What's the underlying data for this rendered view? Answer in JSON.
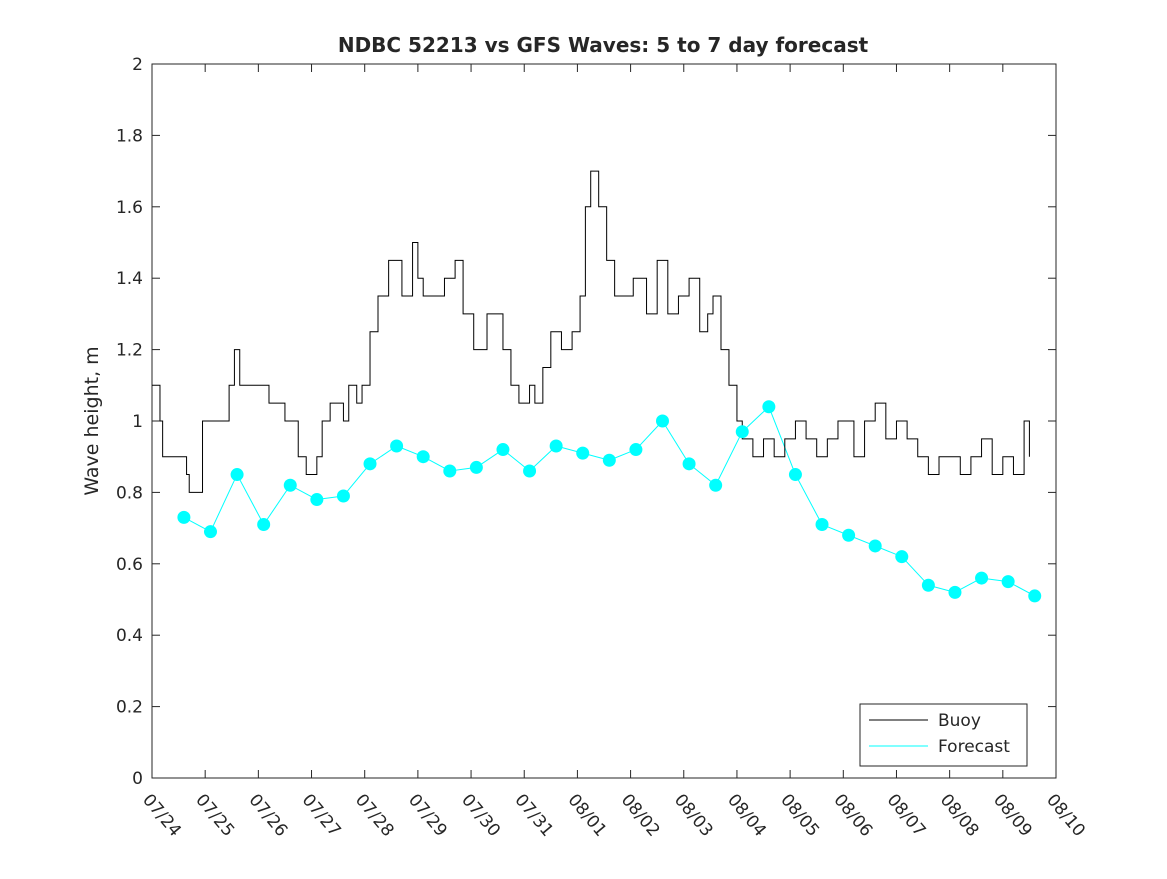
{
  "chart_data": {
    "type": "line",
    "title": "NDBC 52213 vs GFS Waves: 5 to 7 day forecast",
    "xlabel": "",
    "ylabel": "Wave height, m",
    "xlim": [
      0,
      17
    ],
    "ylim": [
      0,
      2
    ],
    "x_tick_values": [
      0,
      1,
      2,
      3,
      4,
      5,
      6,
      7,
      8,
      9,
      10,
      11,
      12,
      13,
      14,
      15,
      16,
      17
    ],
    "x_tick_labels": [
      "07/24",
      "07/25",
      "07/26",
      "07/27",
      "07/28",
      "07/29",
      "07/30",
      "07/31",
      "08/01",
      "08/02",
      "08/03",
      "08/04",
      "08/05",
      "08/06",
      "08/07",
      "08/08",
      "08/09",
      "08/10"
    ],
    "y_tick_labels": [
      "0",
      "0.2",
      "0.4",
      "0.6",
      "0.8",
      "1",
      "1.2",
      "1.4",
      "1.6",
      "1.8",
      "2"
    ],
    "grid": false,
    "legend": {
      "position": "bottom-right",
      "entries": [
        "Buoy",
        "Forecast"
      ]
    },
    "colors": {
      "buoy": "#000000",
      "forecast": "#00ffff"
    },
    "series": [
      {
        "name": "Buoy",
        "x_unit": "days since 07/24",
        "points": [
          [
            0.0,
            1.1
          ],
          [
            0.15,
            1.0
          ],
          [
            0.2,
            0.9
          ],
          [
            0.5,
            0.9
          ],
          [
            0.65,
            0.85
          ],
          [
            0.7,
            0.8
          ],
          [
            0.95,
            1.0
          ],
          [
            1.3,
            1.0
          ],
          [
            1.45,
            1.1
          ],
          [
            1.55,
            1.2
          ],
          [
            1.65,
            1.1
          ],
          [
            2.0,
            1.1
          ],
          [
            2.2,
            1.05
          ],
          [
            2.5,
            1.0
          ],
          [
            2.75,
            0.9
          ],
          [
            2.9,
            0.85
          ],
          [
            3.1,
            0.9
          ],
          [
            3.2,
            1.0
          ],
          [
            3.35,
            1.05
          ],
          [
            3.6,
            1.0
          ],
          [
            3.7,
            1.1
          ],
          [
            3.85,
            1.05
          ],
          [
            3.95,
            1.1
          ],
          [
            4.1,
            1.25
          ],
          [
            4.25,
            1.35
          ],
          [
            4.45,
            1.45
          ],
          [
            4.7,
            1.35
          ],
          [
            4.9,
            1.5
          ],
          [
            5.0,
            1.4
          ],
          [
            5.1,
            1.35
          ],
          [
            5.3,
            1.35
          ],
          [
            5.5,
            1.4
          ],
          [
            5.7,
            1.45
          ],
          [
            5.85,
            1.3
          ],
          [
            6.05,
            1.2
          ],
          [
            6.3,
            1.3
          ],
          [
            6.5,
            1.3
          ],
          [
            6.6,
            1.2
          ],
          [
            6.75,
            1.1
          ],
          [
            6.9,
            1.05
          ],
          [
            7.1,
            1.1
          ],
          [
            7.2,
            1.05
          ],
          [
            7.35,
            1.15
          ],
          [
            7.5,
            1.25
          ],
          [
            7.7,
            1.2
          ],
          [
            7.9,
            1.25
          ],
          [
            8.05,
            1.35
          ],
          [
            8.15,
            1.6
          ],
          [
            8.25,
            1.7
          ],
          [
            8.4,
            1.6
          ],
          [
            8.55,
            1.45
          ],
          [
            8.7,
            1.35
          ],
          [
            8.85,
            1.35
          ],
          [
            9.05,
            1.4
          ],
          [
            9.3,
            1.3
          ],
          [
            9.5,
            1.45
          ],
          [
            9.7,
            1.3
          ],
          [
            9.9,
            1.35
          ],
          [
            10.1,
            1.4
          ],
          [
            10.3,
            1.25
          ],
          [
            10.45,
            1.3
          ],
          [
            10.55,
            1.35
          ],
          [
            10.7,
            1.2
          ],
          [
            10.85,
            1.1
          ],
          [
            11.0,
            1.0
          ],
          [
            11.1,
            0.95
          ],
          [
            11.3,
            0.9
          ],
          [
            11.5,
            0.95
          ],
          [
            11.7,
            0.9
          ],
          [
            11.9,
            0.95
          ],
          [
            12.1,
            1.0
          ],
          [
            12.3,
            0.95
          ],
          [
            12.5,
            0.9
          ],
          [
            12.7,
            0.95
          ],
          [
            12.9,
            1.0
          ],
          [
            13.2,
            0.9
          ],
          [
            13.4,
            1.0
          ],
          [
            13.6,
            1.05
          ],
          [
            13.8,
            0.95
          ],
          [
            14.0,
            1.0
          ],
          [
            14.2,
            0.95
          ],
          [
            14.4,
            0.9
          ],
          [
            14.6,
            0.85
          ],
          [
            14.8,
            0.9
          ],
          [
            15.0,
            0.9
          ],
          [
            15.2,
            0.85
          ],
          [
            15.4,
            0.9
          ],
          [
            15.6,
            0.95
          ],
          [
            15.8,
            0.85
          ],
          [
            16.0,
            0.9
          ],
          [
            16.2,
            0.85
          ],
          [
            16.4,
            1.0
          ],
          [
            16.5,
            0.9
          ]
        ]
      },
      {
        "name": "Forecast",
        "x_unit": "days since 07/24",
        "points": [
          [
            0.6,
            0.73
          ],
          [
            1.1,
            0.69
          ],
          [
            1.6,
            0.85
          ],
          [
            2.1,
            0.71
          ],
          [
            2.6,
            0.82
          ],
          [
            3.1,
            0.78
          ],
          [
            3.6,
            0.79
          ],
          [
            4.1,
            0.88
          ],
          [
            4.6,
            0.93
          ],
          [
            5.1,
            0.9
          ],
          [
            5.6,
            0.86
          ],
          [
            6.1,
            0.87
          ],
          [
            6.6,
            0.92
          ],
          [
            7.1,
            0.86
          ],
          [
            7.6,
            0.93
          ],
          [
            8.1,
            0.91
          ],
          [
            8.6,
            0.89
          ],
          [
            9.1,
            0.92
          ],
          [
            9.6,
            1.0
          ],
          [
            10.1,
            0.88
          ],
          [
            10.6,
            0.82
          ],
          [
            11.1,
            0.97
          ],
          [
            11.6,
            1.04
          ],
          [
            12.1,
            0.85
          ],
          [
            12.6,
            0.71
          ],
          [
            13.1,
            0.68
          ],
          [
            13.6,
            0.65
          ],
          [
            14.1,
            0.62
          ],
          [
            14.6,
            0.54
          ],
          [
            15.1,
            0.52
          ],
          [
            15.6,
            0.56
          ],
          [
            16.1,
            0.55
          ],
          [
            16.6,
            0.51
          ]
        ]
      }
    ]
  }
}
